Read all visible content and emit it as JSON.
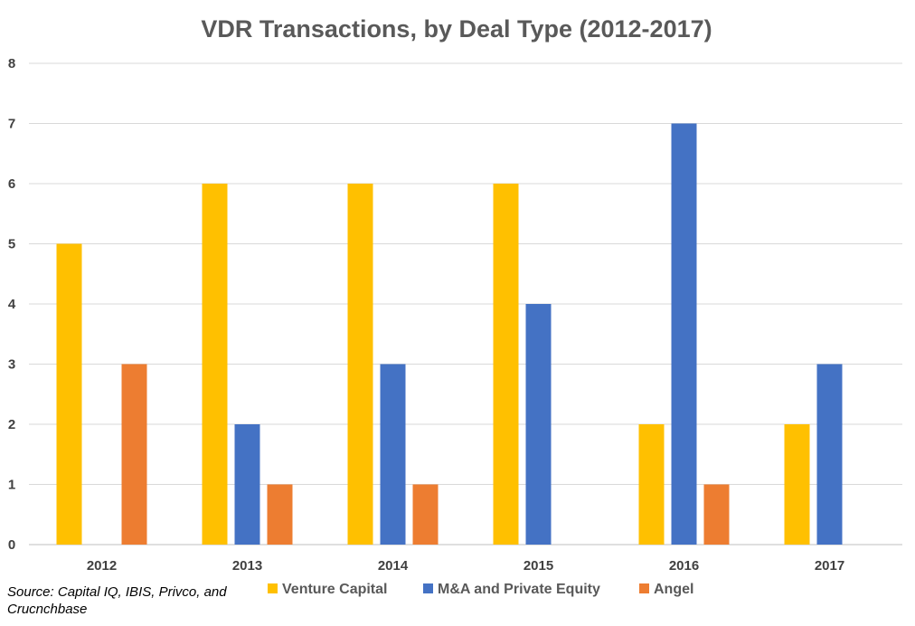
{
  "chart_data": {
    "type": "bar",
    "title": "VDR Transactions, by Deal Type (2012-2017)",
    "categories": [
      "2012",
      "2013",
      "2014",
      "2015",
      "2016",
      "2017"
    ],
    "series": [
      {
        "name": "Venture Capital",
        "color": "#FFC000",
        "values": [
          5,
          6,
          6,
          6,
          2,
          2
        ]
      },
      {
        "name": "M&A and Private Equity",
        "color": "#4472C4",
        "values": [
          0,
          2,
          3,
          4,
          7,
          3
        ]
      },
      {
        "name": "Angel",
        "color": "#ED7D31",
        "values": [
          3,
          1,
          1,
          0,
          1,
          0
        ]
      }
    ],
    "ylim": [
      0,
      8
    ],
    "yticks": [
      "0",
      "1",
      "2",
      "3",
      "4",
      "5",
      "6",
      "7",
      "8"
    ],
    "xlabel": "",
    "ylabel": "",
    "grid": true,
    "legend_position": "bottom"
  },
  "source_note": "Source: Capital IQ, IBIS, Privco, and Crucnchbase"
}
